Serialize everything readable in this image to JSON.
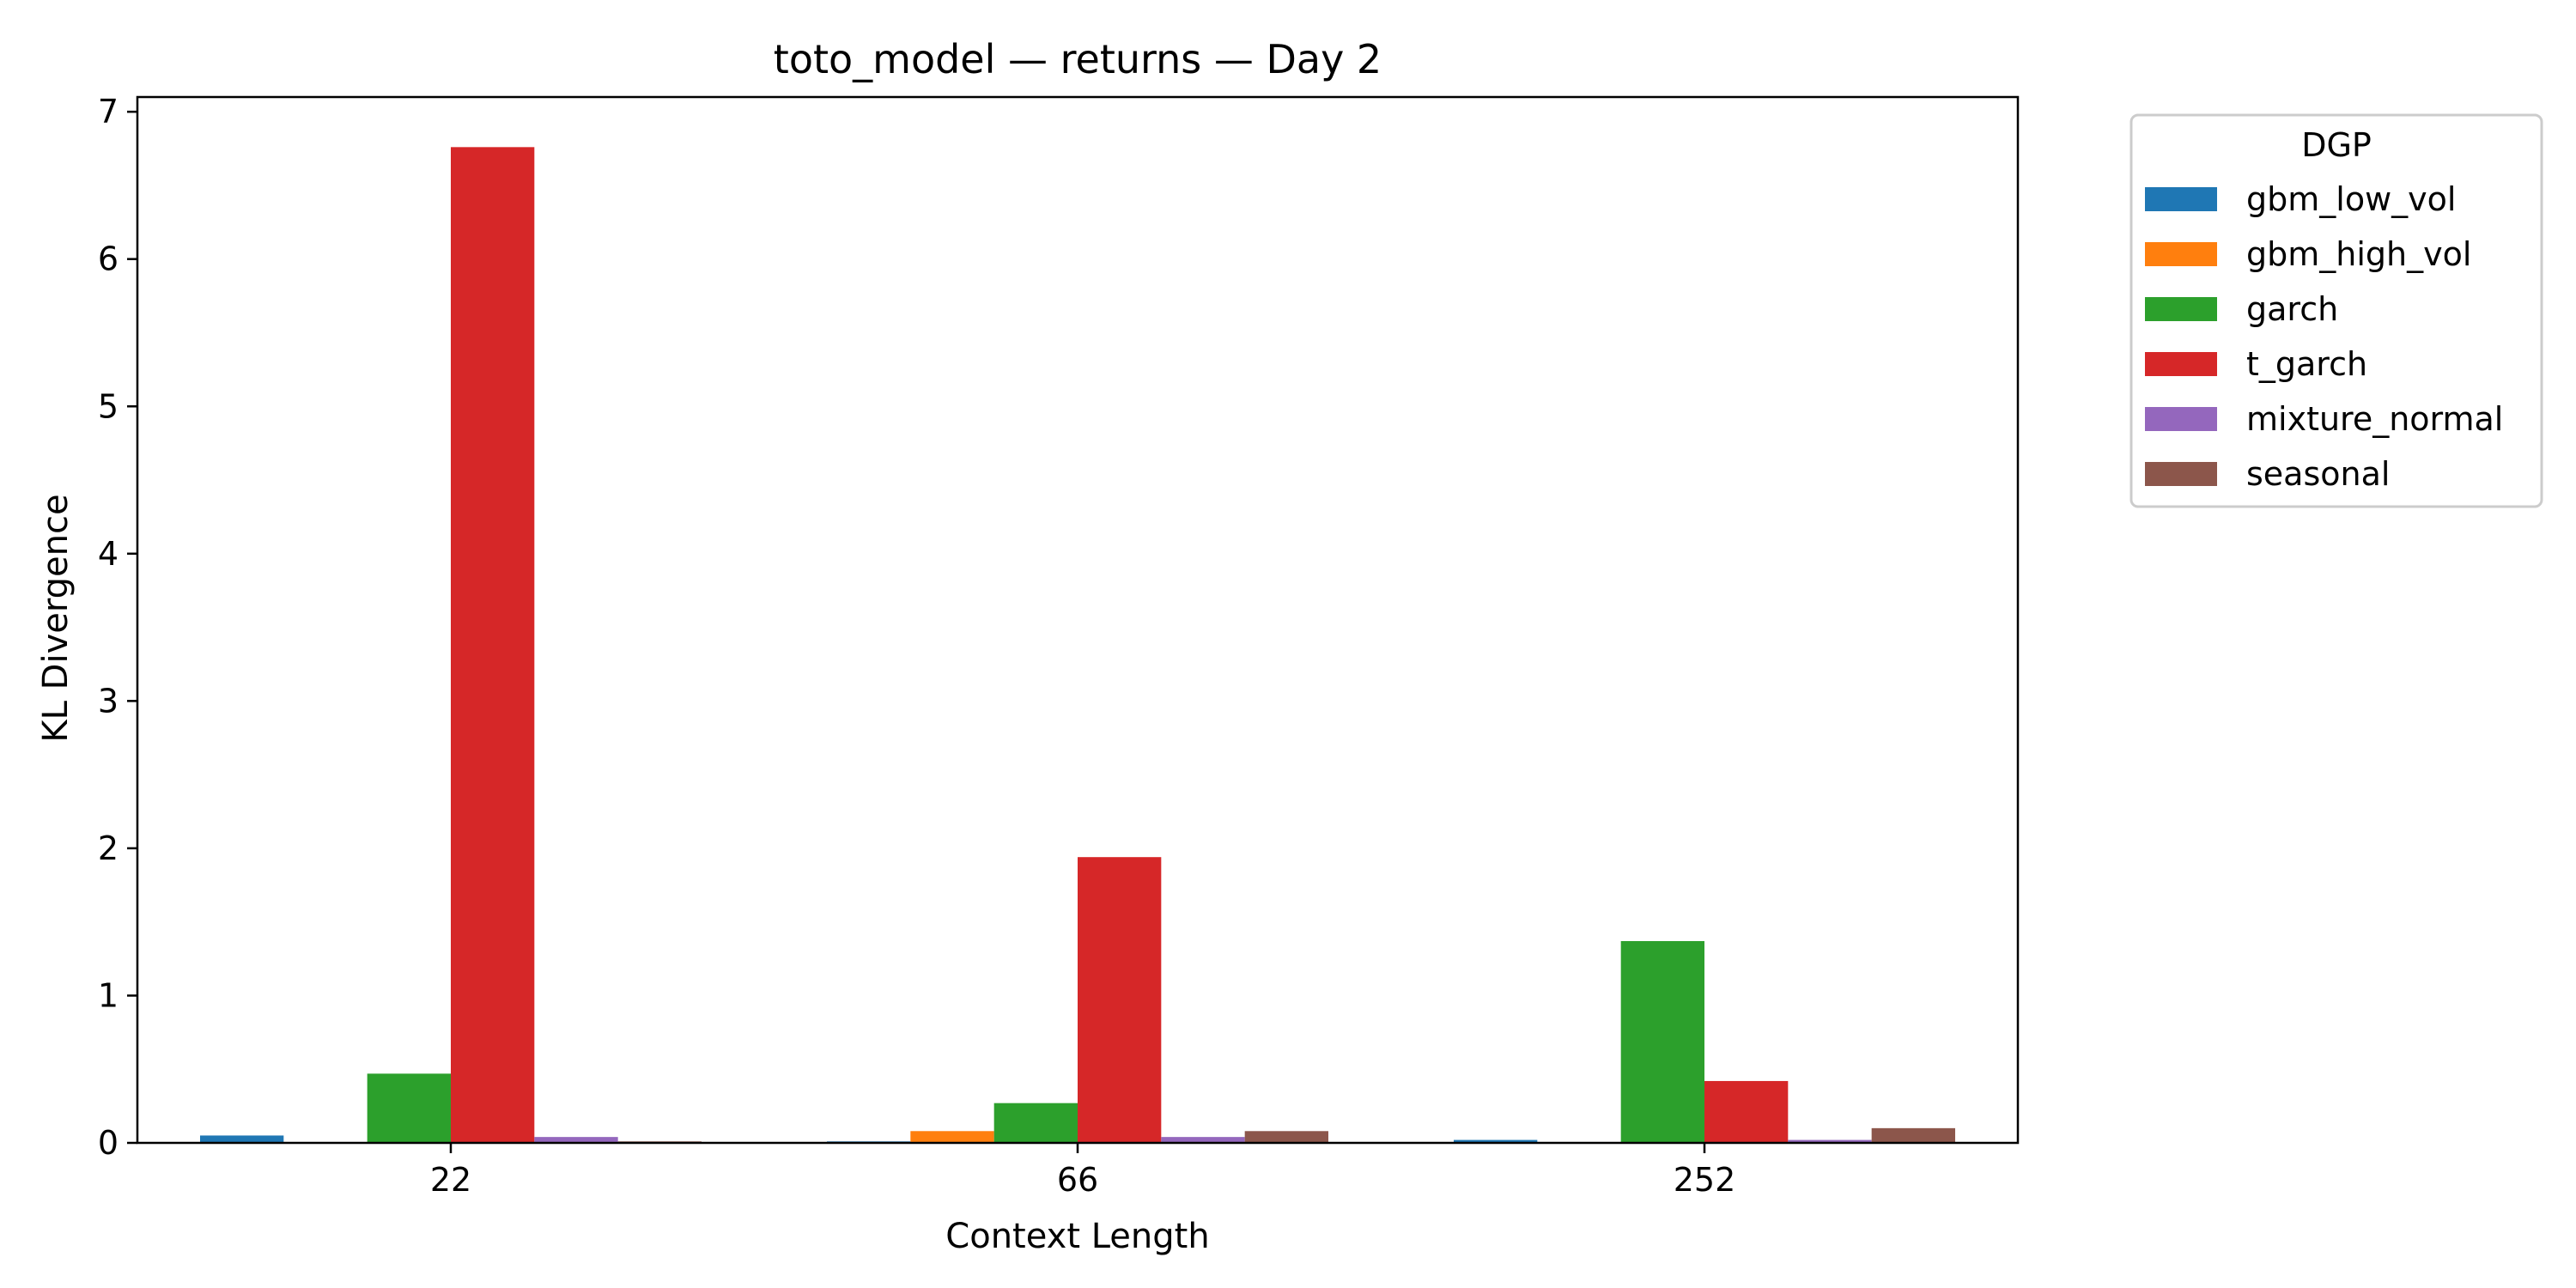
{
  "chart_data": {
    "type": "bar",
    "title": "toto_model — returns — Day 2",
    "xlabel": "Context Length",
    "ylabel": "KL Divergence",
    "categories": [
      "22",
      "66",
      "252"
    ],
    "ylim": [
      0,
      7.1
    ],
    "yticks": [
      0,
      1,
      2,
      3,
      4,
      5,
      6,
      7
    ],
    "grid": false,
    "legend": {
      "title": "DGP",
      "placement": "outside-top-right"
    },
    "series": [
      {
        "name": "gbm_low_vol",
        "color": "#1f77b4",
        "values": [
          0.05,
          0.01,
          0.02
        ]
      },
      {
        "name": "gbm_high_vol",
        "color": "#ff7f0e",
        "values": [
          0.005,
          0.08,
          0.0
        ]
      },
      {
        "name": "garch",
        "color": "#2ca02c",
        "values": [
          0.47,
          0.27,
          1.37
        ]
      },
      {
        "name": "t_garch",
        "color": "#d62728",
        "values": [
          6.76,
          1.94,
          0.42
        ]
      },
      {
        "name": "mixture_normal",
        "color": "#9467bd",
        "values": [
          0.04,
          0.04,
          0.02
        ]
      },
      {
        "name": "seasonal",
        "color": "#8c564b",
        "values": [
          0.01,
          0.08,
          0.1
        ]
      }
    ]
  }
}
